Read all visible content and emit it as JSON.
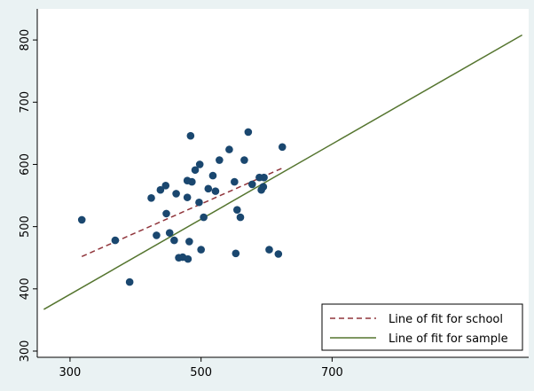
{
  "chart_data": {
    "type": "scatter",
    "title": "",
    "xlabel": "",
    "ylabel": "",
    "xlim": [
      250,
      1000
    ],
    "ylim": [
      290,
      850
    ],
    "xticks": [
      300,
      500,
      700
    ],
    "yticks": [
      300,
      400,
      500,
      600,
      700,
      800
    ],
    "grid": false,
    "legend_position": "bottom-right",
    "colors": {
      "background": "#eaf2f3",
      "plot_area": "#ffffff",
      "points": "#1a476f",
      "school_line": "#90353b",
      "sample_line": "#55752f",
      "axis": "#000000"
    },
    "series": [
      {
        "type": "scatter",
        "marker": "circle",
        "points": [
          [
            318,
            511
          ],
          [
            369,
            478
          ],
          [
            391,
            411
          ],
          [
            424,
            546
          ],
          [
            432,
            486
          ],
          [
            438,
            559
          ],
          [
            446,
            566
          ],
          [
            447,
            521
          ],
          [
            452,
            490
          ],
          [
            459,
            478
          ],
          [
            462,
            553
          ],
          [
            466,
            450
          ],
          [
            472,
            451
          ],
          [
            479,
            547
          ],
          [
            479,
            574
          ],
          [
            480,
            448
          ],
          [
            482,
            476
          ],
          [
            484,
            646
          ],
          [
            486,
            572
          ],
          [
            491,
            591
          ],
          [
            497,
            539
          ],
          [
            498,
            600
          ],
          [
            500,
            463
          ],
          [
            504,
            515
          ],
          [
            511,
            561
          ],
          [
            518,
            582
          ],
          [
            522,
            557
          ],
          [
            528,
            607
          ],
          [
            543,
            624
          ],
          [
            551,
            572
          ],
          [
            553,
            457
          ],
          [
            555,
            527
          ],
          [
            560,
            515
          ],
          [
            566,
            607
          ],
          [
            572,
            652
          ],
          [
            578,
            568
          ],
          [
            589,
            579
          ],
          [
            592,
            559
          ],
          [
            595,
            564
          ],
          [
            596,
            579
          ],
          [
            604,
            463
          ],
          [
            618,
            456
          ],
          [
            624,
            628
          ]
        ]
      },
      {
        "type": "line",
        "name": "Line of fit for school",
        "style": "dashed",
        "points": [
          [
            318,
            452
          ],
          [
            624,
            594
          ]
        ]
      },
      {
        "type": "line",
        "name": "Line of fit for sample",
        "style": "solid",
        "points": [
          [
            260,
            367
          ],
          [
            990,
            808
          ]
        ]
      }
    ]
  }
}
